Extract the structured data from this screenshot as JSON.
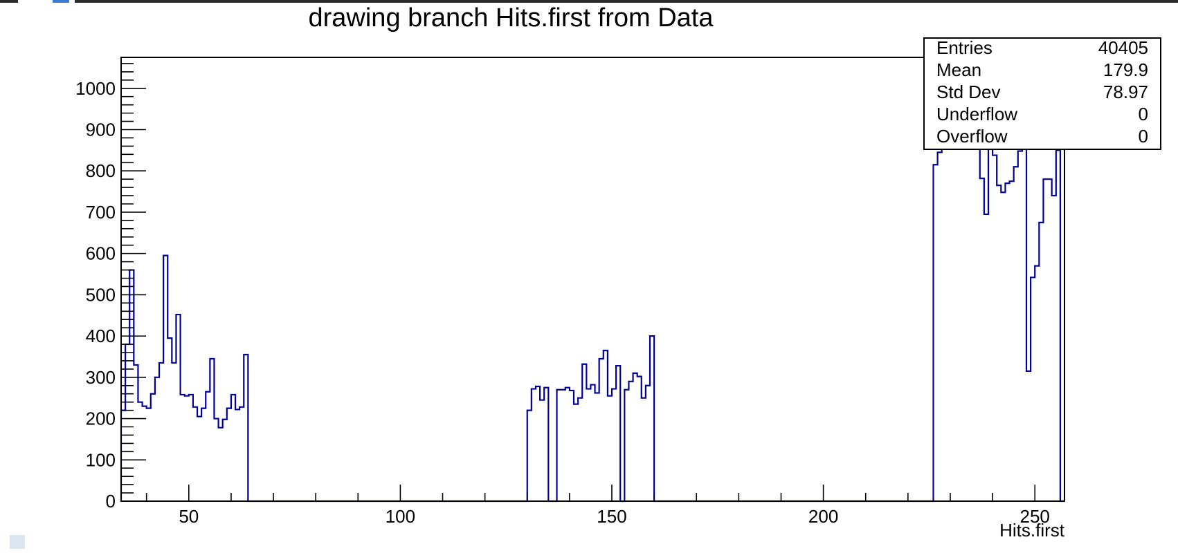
{
  "chart_data": {
    "type": "bar",
    "histogram": true,
    "title": "drawing branch Hits.first from Data",
    "xlabel": "Hits.first",
    "ylabel": "",
    "xlim": [
      34,
      257
    ],
    "ylim": [
      0,
      1075
    ],
    "x_major_ticks": [
      50,
      100,
      150,
      200,
      250
    ],
    "y_major_ticks": [
      0,
      100,
      200,
      300,
      400,
      500,
      600,
      700,
      800,
      900,
      1000
    ],
    "bin_width": 1,
    "line_color": "#000099",
    "stats": {
      "rows": [
        {
          "label": "Entries",
          "value": "40405"
        },
        {
          "label": "Mean",
          "value": "179.9"
        },
        {
          "label": "Std Dev",
          "value": "78.97"
        },
        {
          "label": "Underflow",
          "value": "0"
        },
        {
          "label": "Overflow",
          "value": "0"
        }
      ]
    },
    "series": [
      {
        "values": [
          [
            34,
            220
          ],
          [
            35,
            380
          ],
          [
            36,
            560
          ],
          [
            37,
            330
          ],
          [
            38,
            240
          ],
          [
            39,
            230
          ],
          [
            40,
            225
          ],
          [
            41,
            260
          ],
          [
            42,
            300
          ],
          [
            43,
            335
          ],
          [
            44,
            595
          ],
          [
            45,
            395
          ],
          [
            46,
            335
          ],
          [
            47,
            452
          ],
          [
            48,
            258
          ],
          [
            49,
            255
          ],
          [
            50,
            258
          ],
          [
            51,
            228
          ],
          [
            52,
            205
          ],
          [
            53,
            225
          ],
          [
            54,
            265
          ],
          [
            55,
            345
          ],
          [
            56,
            200
          ],
          [
            57,
            178
          ],
          [
            58,
            198
          ],
          [
            59,
            225
          ],
          [
            60,
            258
          ],
          [
            61,
            222
          ],
          [
            62,
            228
          ],
          [
            63,
            355
          ],
          [
            64,
            0
          ],
          [
            65,
            0
          ],
          [
            66,
            0
          ],
          [
            67,
            0
          ],
          [
            68,
            0
          ],
          [
            69,
            0
          ],
          [
            70,
            0
          ],
          [
            71,
            0
          ],
          [
            72,
            0
          ],
          [
            73,
            0
          ],
          [
            74,
            0
          ],
          [
            75,
            0
          ],
          [
            76,
            0
          ],
          [
            77,
            0
          ],
          [
            78,
            0
          ],
          [
            79,
            0
          ],
          [
            80,
            0
          ],
          [
            81,
            0
          ],
          [
            82,
            0
          ],
          [
            83,
            0
          ],
          [
            84,
            0
          ],
          [
            85,
            0
          ],
          [
            86,
            0
          ],
          [
            87,
            0
          ],
          [
            88,
            0
          ],
          [
            89,
            0
          ],
          [
            90,
            0
          ],
          [
            91,
            0
          ],
          [
            92,
            0
          ],
          [
            93,
            0
          ],
          [
            94,
            0
          ],
          [
            95,
            0
          ],
          [
            96,
            0
          ],
          [
            97,
            0
          ],
          [
            98,
            0
          ],
          [
            99,
            0
          ],
          [
            100,
            0
          ],
          [
            101,
            0
          ],
          [
            102,
            0
          ],
          [
            103,
            0
          ],
          [
            104,
            0
          ],
          [
            105,
            0
          ],
          [
            106,
            0
          ],
          [
            107,
            0
          ],
          [
            108,
            0
          ],
          [
            109,
            0
          ],
          [
            110,
            0
          ],
          [
            111,
            0
          ],
          [
            112,
            0
          ],
          [
            113,
            0
          ],
          [
            114,
            0
          ],
          [
            115,
            0
          ],
          [
            116,
            0
          ],
          [
            117,
            0
          ],
          [
            118,
            0
          ],
          [
            119,
            0
          ],
          [
            120,
            0
          ],
          [
            121,
            0
          ],
          [
            122,
            0
          ],
          [
            123,
            0
          ],
          [
            124,
            0
          ],
          [
            125,
            0
          ],
          [
            126,
            0
          ],
          [
            127,
            0
          ],
          [
            128,
            0
          ],
          [
            129,
            0
          ],
          [
            130,
            220
          ],
          [
            131,
            272
          ],
          [
            132,
            278
          ],
          [
            133,
            245
          ],
          [
            134,
            275
          ],
          [
            135,
            0
          ],
          [
            136,
            0
          ],
          [
            137,
            270
          ],
          [
            138,
            270
          ],
          [
            139,
            275
          ],
          [
            140,
            268
          ],
          [
            141,
            235
          ],
          [
            142,
            250
          ],
          [
            143,
            332
          ],
          [
            144,
            272
          ],
          [
            145,
            282
          ],
          [
            146,
            262
          ],
          [
            147,
            345
          ],
          [
            148,
            365
          ],
          [
            149,
            255
          ],
          [
            150,
            272
          ],
          [
            151,
            328
          ],
          [
            152,
            0
          ],
          [
            153,
            270
          ],
          [
            154,
            290
          ],
          [
            155,
            310
          ],
          [
            156,
            302
          ],
          [
            157,
            250
          ],
          [
            158,
            280
          ],
          [
            159,
            400
          ],
          [
            160,
            0
          ],
          [
            161,
            0
          ],
          [
            162,
            0
          ],
          [
            163,
            0
          ],
          [
            164,
            0
          ],
          [
            165,
            0
          ],
          [
            166,
            0
          ],
          [
            167,
            0
          ],
          [
            168,
            0
          ],
          [
            169,
            0
          ],
          [
            170,
            0
          ],
          [
            171,
            0
          ],
          [
            172,
            0
          ],
          [
            173,
            0
          ],
          [
            174,
            0
          ],
          [
            175,
            0
          ],
          [
            176,
            0
          ],
          [
            177,
            0
          ],
          [
            178,
            0
          ],
          [
            179,
            0
          ],
          [
            180,
            0
          ],
          [
            181,
            0
          ],
          [
            182,
            0
          ],
          [
            183,
            0
          ],
          [
            184,
            0
          ],
          [
            185,
            0
          ],
          [
            186,
            0
          ],
          [
            187,
            0
          ],
          [
            188,
            0
          ],
          [
            189,
            0
          ],
          [
            190,
            0
          ],
          [
            191,
            0
          ],
          [
            192,
            0
          ],
          [
            193,
            0
          ],
          [
            194,
            0
          ],
          [
            195,
            0
          ],
          [
            196,
            0
          ],
          [
            197,
            0
          ],
          [
            198,
            0
          ],
          [
            199,
            0
          ],
          [
            200,
            0
          ],
          [
            201,
            0
          ],
          [
            202,
            0
          ],
          [
            203,
            0
          ],
          [
            204,
            0
          ],
          [
            205,
            0
          ],
          [
            206,
            0
          ],
          [
            207,
            0
          ],
          [
            208,
            0
          ],
          [
            209,
            0
          ],
          [
            210,
            0
          ],
          [
            211,
            0
          ],
          [
            212,
            0
          ],
          [
            213,
            0
          ],
          [
            214,
            0
          ],
          [
            215,
            0
          ],
          [
            216,
            0
          ],
          [
            217,
            0
          ],
          [
            218,
            0
          ],
          [
            219,
            0
          ],
          [
            220,
            0
          ],
          [
            221,
            0
          ],
          [
            222,
            0
          ],
          [
            223,
            0
          ],
          [
            224,
            0
          ],
          [
            225,
            0
          ],
          [
            226,
            815
          ],
          [
            227,
            845
          ],
          [
            228,
            870
          ],
          [
            229,
            880
          ],
          [
            230,
            900
          ],
          [
            231,
            885
          ],
          [
            232,
            890
          ],
          [
            233,
            905
          ],
          [
            234,
            925
          ],
          [
            235,
            895
          ],
          [
            236,
            860
          ],
          [
            237,
            782
          ],
          [
            238,
            695
          ],
          [
            239,
            860
          ],
          [
            240,
            838
          ],
          [
            241,
            765
          ],
          [
            242,
            748
          ],
          [
            243,
            770
          ],
          [
            244,
            775
          ],
          [
            245,
            810
          ],
          [
            246,
            848
          ],
          [
            247,
            880
          ],
          [
            248,
            315
          ],
          [
            249,
            542
          ],
          [
            250,
            570
          ],
          [
            251,
            675
          ],
          [
            252,
            780
          ],
          [
            253,
            780
          ],
          [
            254,
            740
          ],
          [
            255,
            850
          ],
          [
            256,
            0
          ]
        ]
      }
    ]
  }
}
